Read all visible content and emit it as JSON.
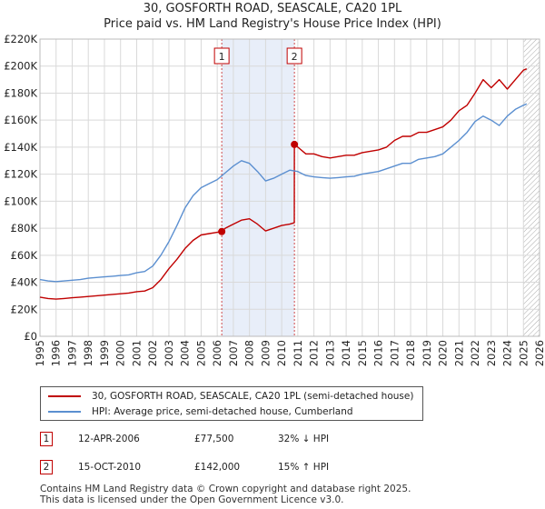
{
  "title_line1": "30, GOSFORTH ROAD, SEASCALE, CA20 1PL",
  "title_line2": "Price paid vs. HM Land Registry's House Price Index (HPI)",
  "colors": {
    "property": "#c00000",
    "hpi": "#5b8fd0",
    "shade": "#e8eef9",
    "grid": "#d9d9d9"
  },
  "chart_data": {
    "type": "line",
    "title": "30, GOSFORTH ROAD, SEASCALE, CA20 1PL — Price paid vs. HM Land Registry's House Price Index (HPI)",
    "xlabel": "",
    "ylabel": "",
    "xlim": [
      1995,
      2026
    ],
    "ylim": [
      0,
      220000
    ],
    "y_ticks": [
      0,
      20000,
      40000,
      60000,
      80000,
      100000,
      120000,
      140000,
      160000,
      180000,
      200000,
      220000
    ],
    "y_tick_labels": [
      "£0",
      "£20K",
      "£40K",
      "£60K",
      "£80K",
      "£100K",
      "£120K",
      "£140K",
      "£160K",
      "£180K",
      "£200K",
      "£220K"
    ],
    "x_ticks": [
      1995,
      1996,
      1997,
      1998,
      1999,
      2000,
      2001,
      2002,
      2003,
      2004,
      2005,
      2006,
      2007,
      2008,
      2009,
      2010,
      2011,
      2012,
      2013,
      2014,
      2015,
      2016,
      2017,
      2018,
      2019,
      2020,
      2021,
      2022,
      2023,
      2024,
      2025,
      2026
    ],
    "x_tick_labels": [
      "1995",
      "1996",
      "1997",
      "1998",
      "1999",
      "2000",
      "2001",
      "2002",
      "2003",
      "2004",
      "2005",
      "2006",
      "2007",
      "2008",
      "2009",
      "2010",
      "2011",
      "2012",
      "2013",
      "2014",
      "2015",
      "2016",
      "2017",
      "2018",
      "2019",
      "2020",
      "2021",
      "2022",
      "2023",
      "2024",
      "2025",
      "2026"
    ],
    "grid": true,
    "shaded_range": [
      2006.28,
      2010.79
    ],
    "hatched_from": 2025.0,
    "series": [
      {
        "name": "30, GOSFORTH ROAD, SEASCALE, CA20 1PL (semi-detached house)",
        "x": [
          1995,
          1995.5,
          1996,
          1996.5,
          1997,
          1997.5,
          1998,
          1998.5,
          1999,
          1999.5,
          2000,
          2000.5,
          2001,
          2001.5,
          2002,
          2002.5,
          2003,
          2003.5,
          2004,
          2004.5,
          2005,
          2005.5,
          2006,
          2006.28,
          2006.5,
          2007,
          2007.5,
          2008,
          2008.5,
          2009,
          2009.5,
          2010,
          2010.5,
          2010.78,
          2010.79,
          2011,
          2011.5,
          2012,
          2012.5,
          2013,
          2013.5,
          2014,
          2014.5,
          2015,
          2015.5,
          2016,
          2016.5,
          2017,
          2017.5,
          2018,
          2018.5,
          2019,
          2019.5,
          2020,
          2020.5,
          2021,
          2021.5,
          2022,
          2022.5,
          2023,
          2023.5,
          2024,
          2024.5,
          2025,
          2025.2
        ],
        "values": [
          29000,
          28000,
          27500,
          28000,
          28500,
          29000,
          29500,
          30000,
          30500,
          31000,
          31500,
          32000,
          33000,
          33500,
          36000,
          42000,
          50000,
          57000,
          65000,
          71000,
          75000,
          76000,
          77000,
          77500,
          80000,
          83000,
          86000,
          87000,
          83000,
          78000,
          80000,
          82000,
          83000,
          84000,
          142000,
          140000,
          135000,
          135000,
          133000,
          132000,
          133000,
          134000,
          134000,
          136000,
          137000,
          138000,
          140000,
          145000,
          148000,
          148000,
          151000,
          151000,
          153000,
          155000,
          160000,
          167000,
          171000,
          180000,
          190000,
          184000,
          190000,
          183000,
          190000,
          197000,
          198000
        ]
      },
      {
        "name": "HPI: Average price, semi-detached house, Cumberland",
        "x": [
          1995,
          1995.5,
          1996,
          1996.5,
          1997,
          1997.5,
          1998,
          1998.5,
          1999,
          1999.5,
          2000,
          2000.5,
          2001,
          2001.5,
          2002,
          2002.5,
          2003,
          2003.5,
          2004,
          2004.5,
          2005,
          2005.5,
          2006,
          2006.5,
          2007,
          2007.5,
          2008,
          2008.5,
          2009,
          2009.5,
          2010,
          2010.5,
          2011,
          2011.5,
          2012,
          2012.5,
          2013,
          2013.5,
          2014,
          2014.5,
          2015,
          2015.5,
          2016,
          2016.5,
          2017,
          2017.5,
          2018,
          2018.5,
          2019,
          2019.5,
          2020,
          2020.5,
          2021,
          2021.5,
          2022,
          2022.5,
          2023,
          2023.5,
          2024,
          2024.5,
          2025,
          2025.2
        ],
        "values": [
          42000,
          41000,
          40500,
          41000,
          41500,
          42000,
          43000,
          43500,
          44000,
          44500,
          45000,
          45500,
          47000,
          48000,
          52000,
          60000,
          70000,
          82000,
          95000,
          104000,
          110000,
          113000,
          116000,
          121000,
          126000,
          130000,
          128000,
          122000,
          115000,
          117000,
          120000,
          123000,
          122000,
          119000,
          118000,
          117500,
          117000,
          117500,
          118000,
          118500,
          120000,
          121000,
          122000,
          124000,
          126000,
          128000,
          128000,
          131000,
          132000,
          133000,
          135000,
          140000,
          145000,
          151000,
          159000,
          163000,
          160000,
          156000,
          163000,
          168000,
          171000,
          172000
        ]
      }
    ],
    "annotations": [
      {
        "label": "1",
        "x": 2006.28,
        "y": 77500
      },
      {
        "label": "2",
        "x": 2010.79,
        "y": 142000
      }
    ]
  },
  "legend": {
    "property_label": "30, GOSFORTH ROAD, SEASCALE, CA20 1PL (semi-detached house)",
    "hpi_label": "HPI: Average price, semi-detached house, Cumberland"
  },
  "transactions": [
    {
      "num": "1",
      "date": "12-APR-2006",
      "price": "£77,500",
      "hpi": "32% ↓ HPI"
    },
    {
      "num": "2",
      "date": "15-OCT-2010",
      "price": "£142,000",
      "hpi": "15% ↑ HPI"
    }
  ],
  "footer": {
    "line1": "Contains HM Land Registry data © Crown copyright and database right 2025.",
    "line2": "This data is licensed under the Open Government Licence v3.0."
  }
}
